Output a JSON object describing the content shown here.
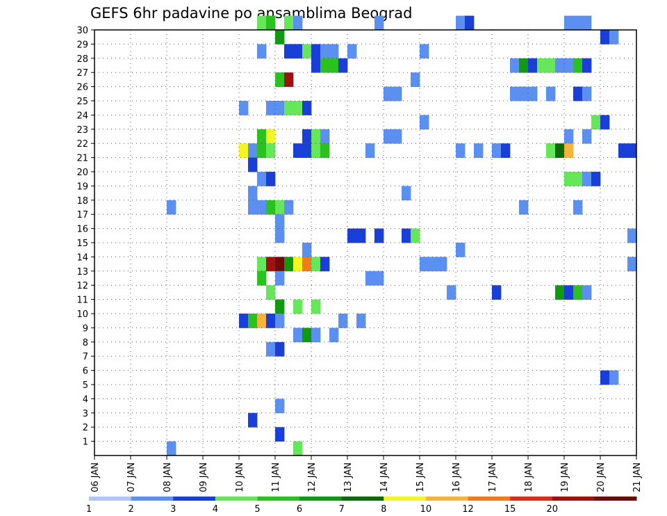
{
  "chart_data": {
    "type": "heatmap",
    "title": "GEFS 6hr padavine po ansamblima Beograd",
    "xlabel": "",
    "ylabel": "",
    "x_ticks": [
      "06 JAN",
      "07 JAN",
      "08 JAN",
      "09 JAN",
      "10 JAN",
      "11 JAN",
      "12 JAN",
      "13 JAN",
      "14 JAN",
      "15 JAN",
      "16 JAN",
      "17 JAN",
      "18 JAN",
      "19 JAN",
      "20 JAN",
      "21 JAN"
    ],
    "y_ticks": [
      "1",
      "2",
      "3",
      "4",
      "5",
      "6",
      "7",
      "8",
      "9",
      "10",
      "11",
      "12",
      "13",
      "14",
      "15",
      "16",
      "17",
      "18",
      "19",
      "20",
      "21",
      "22",
      "23",
      "24",
      "25",
      "26",
      "27",
      "28",
      "29",
      "30"
    ],
    "xlim": [
      0,
      60
    ],
    "ylim": [
      0,
      30
    ],
    "grid": true,
    "levels": [
      "1",
      "2",
      "3",
      "4",
      "5",
      "6",
      "7",
      "8",
      "10",
      "12",
      "15",
      "20"
    ],
    "level_colors": [
      "#b3c7f7",
      "#5b8ff0",
      "#1a3fd9",
      "#66e75a",
      "#29c21f",
      "#0f9a10",
      "#0a6b0a",
      "#f5f522",
      "#f8b43a",
      "#f27a1c",
      "#dc2e16",
      "#a0120f",
      "#6e0a08"
    ],
    "cells": [
      {
        "ens": 30,
        "t": "10 JAN 12Z",
        "level": 3
      },
      {
        "ens": 30,
        "t": "10 JAN 18Z",
        "level": 4
      },
      {
        "ens": 30,
        "t": "11 JAN 06Z",
        "level": 3
      },
      {
        "ens": 30,
        "t": "11 JAN 12Z",
        "level": 1
      },
      {
        "ens": 30,
        "t": "13 JAN 18Z",
        "level": 1
      },
      {
        "ens": 30,
        "t": "16 JAN 00Z",
        "level": 1
      },
      {
        "ens": 30,
        "t": "16 JAN 06Z",
        "level": 2
      },
      {
        "ens": 30,
        "t": "19 JAN 00Z",
        "level": 1
      },
      {
        "ens": 30,
        "t": "19 JAN 06Z",
        "level": 1
      },
      {
        "ens": 30,
        "t": "19 JAN 12Z",
        "level": 1
      },
      {
        "ens": 29,
        "t": "11 JAN 00Z",
        "level": 5
      },
      {
        "ens": 29,
        "t": "20 JAN 00Z",
        "level": 2
      },
      {
        "ens": 29,
        "t": "20 JAN 06Z",
        "level": 1
      },
      {
        "ens": 28,
        "t": "10 JAN 12Z",
        "level": 1
      },
      {
        "ens": 28,
        "t": "11 JAN 06Z",
        "level": 2
      },
      {
        "ens": 28,
        "t": "11 JAN 12Z",
        "level": 2
      },
      {
        "ens": 28,
        "t": "11 JAN 18Z",
        "level": 3
      },
      {
        "ens": 28,
        "t": "12 JAN 00Z",
        "level": 2
      },
      {
        "ens": 28,
        "t": "12 JAN 06Z",
        "level": 1
      },
      {
        "ens": 28,
        "t": "12 JAN 12Z",
        "level": 1
      },
      {
        "ens": 28,
        "t": "13 JAN 00Z",
        "level": 1
      },
      {
        "ens": 28,
        "t": "15 JAN 00Z",
        "level": 1
      },
      {
        "ens": 27,
        "t": "12 JAN 00Z",
        "level": 2
      },
      {
        "ens": 27,
        "t": "12 JAN 06Z",
        "level": 4
      },
      {
        "ens": 27,
        "t": "12 JAN 12Z",
        "level": 4
      },
      {
        "ens": 27,
        "t": "12 JAN 18Z",
        "level": 2
      },
      {
        "ens": 27,
        "t": "17 JAN 12Z",
        "level": 1
      },
      {
        "ens": 27,
        "t": "17 JAN 18Z",
        "level": 5
      },
      {
        "ens": 27,
        "t": "18 JAN 00Z",
        "level": 2
      },
      {
        "ens": 27,
        "t": "18 JAN 06Z",
        "level": 3
      },
      {
        "ens": 27,
        "t": "18 JAN 12Z",
        "level": 3
      },
      {
        "ens": 27,
        "t": "18 JAN 18Z",
        "level": 1
      },
      {
        "ens": 27,
        "t": "19 JAN 00Z",
        "level": 1
      },
      {
        "ens": 27,
        "t": "19 JAN 06Z",
        "level": 4
      },
      {
        "ens": 27,
        "t": "19 JAN 12Z",
        "level": 2
      },
      {
        "ens": 26,
        "t": "11 JAN 00Z",
        "level": 4
      },
      {
        "ens": 26,
        "t": "11 JAN 06Z",
        "level": 11
      },
      {
        "ens": 26,
        "t": "14 JAN 18Z",
        "level": 1
      },
      {
        "ens": 25,
        "t": "14 JAN 00Z",
        "level": 1
      },
      {
        "ens": 25,
        "t": "14 JAN 06Z",
        "level": 1
      },
      {
        "ens": 25,
        "t": "17 JAN 12Z",
        "level": 1
      },
      {
        "ens": 25,
        "t": "17 JAN 18Z",
        "level": 1
      },
      {
        "ens": 25,
        "t": "18 JAN 00Z",
        "level": 1
      },
      {
        "ens": 25,
        "t": "18 JAN 12Z",
        "level": 1
      },
      {
        "ens": 25,
        "t": "19 JAN 06Z",
        "level": 2
      },
      {
        "ens": 25,
        "t": "19 JAN 12Z",
        "level": 1
      },
      {
        "ens": 24,
        "t": "10 JAN 00Z",
        "level": 1
      },
      {
        "ens": 24,
        "t": "10 JAN 18Z",
        "level": 1
      },
      {
        "ens": 24,
        "t": "11 JAN 00Z",
        "level": 1
      },
      {
        "ens": 24,
        "t": "11 JAN 06Z",
        "level": 3
      },
      {
        "ens": 24,
        "t": "11 JAN 12Z",
        "level": 3
      },
      {
        "ens": 24,
        "t": "11 JAN 18Z",
        "level": 2
      },
      {
        "ens": 23,
        "t": "15 JAN 00Z",
        "level": 1
      },
      {
        "ens": 23,
        "t": "19 JAN 18Z",
        "level": 3
      },
      {
        "ens": 23,
        "t": "20 JAN 00Z",
        "level": 2
      },
      {
        "ens": 22,
        "t": "10 JAN 12Z",
        "level": 4
      },
      {
        "ens": 22,
        "t": "10 JAN 18Z",
        "level": 7
      },
      {
        "ens": 22,
        "t": "11 JAN 18Z",
        "level": 2
      },
      {
        "ens": 22,
        "t": "12 JAN 00Z",
        "level": 3
      },
      {
        "ens": 22,
        "t": "12 JAN 06Z",
        "level": 1
      },
      {
        "ens": 22,
        "t": "14 JAN 00Z",
        "level": 1
      },
      {
        "ens": 22,
        "t": "14 JAN 06Z",
        "level": 1
      },
      {
        "ens": 22,
        "t": "19 JAN 00Z",
        "level": 1
      },
      {
        "ens": 22,
        "t": "19 JAN 12Z",
        "level": 1
      },
      {
        "ens": 21,
        "t": "10 JAN 00Z",
        "level": 7
      },
      {
        "ens": 21,
        "t": "10 JAN 06Z",
        "level": 1
      },
      {
        "ens": 21,
        "t": "10 JAN 12Z",
        "level": 4
      },
      {
        "ens": 21,
        "t": "10 JAN 18Z",
        "level": 3
      },
      {
        "ens": 21,
        "t": "11 JAN 18Z",
        "level": 2
      },
      {
        "ens": 21,
        "t": "11 JAN 12Z",
        "level": 2
      },
      {
        "ens": 21,
        "t": "12 JAN 00Z",
        "level": 3
      },
      {
        "ens": 21,
        "t": "12 JAN 06Z",
        "level": 4
      },
      {
        "ens": 21,
        "t": "13 JAN 12Z",
        "level": 1
      },
      {
        "ens": 21,
        "t": "16 JAN 00Z",
        "level": 1
      },
      {
        "ens": 21,
        "t": "16 JAN 12Z",
        "level": 1
      },
      {
        "ens": 21,
        "t": "17 JAN 00Z",
        "level": 1
      },
      {
        "ens": 21,
        "t": "17 JAN 06Z",
        "level": 2
      },
      {
        "ens": 21,
        "t": "18 JAN 12Z",
        "level": 3
      },
      {
        "ens": 21,
        "t": "18 JAN 18Z",
        "level": 6
      },
      {
        "ens": 21,
        "t": "19 JAN 00Z",
        "level": 8
      },
      {
        "ens": 21,
        "t": "20 JAN 12Z",
        "level": 2
      },
      {
        "ens": 21,
        "t": "20 JAN 18Z",
        "level": 2
      },
      {
        "ens": 20,
        "t": "10 JAN 06Z",
        "level": 2
      },
      {
        "ens": 19,
        "t": "10 JAN 12Z",
        "level": 1
      },
      {
        "ens": 19,
        "t": "10 JAN 18Z",
        "level": 2
      },
      {
        "ens": 19,
        "t": "19 JAN 00Z",
        "level": 3
      },
      {
        "ens": 19,
        "t": "19 JAN 06Z",
        "level": 3
      },
      {
        "ens": 19,
        "t": "19 JAN 12Z",
        "level": 1
      },
      {
        "ens": 19,
        "t": "19 JAN 18Z",
        "level": 2
      },
      {
        "ens": 18,
        "t": "10 JAN 06Z",
        "level": 1
      },
      {
        "ens": 18,
        "t": "14 JAN 12Z",
        "level": 1
      },
      {
        "ens": 17,
        "t": "08 JAN 00Z",
        "level": 1
      },
      {
        "ens": 17,
        "t": "10 JAN 06Z",
        "level": 1
      },
      {
        "ens": 17,
        "t": "10 JAN 12Z",
        "level": 1
      },
      {
        "ens": 17,
        "t": "10 JAN 18Z",
        "level": 4
      },
      {
        "ens": 17,
        "t": "11 JAN 00Z",
        "level": 3
      },
      {
        "ens": 17,
        "t": "11 JAN 06Z",
        "level": 1
      },
      {
        "ens": 17,
        "t": "17 JAN 18Z",
        "level": 1
      },
      {
        "ens": 17,
        "t": "19 JAN 06Z",
        "level": 1
      },
      {
        "ens": 16,
        "t": "11 JAN 00Z",
        "level": 1
      },
      {
        "ens": 15,
        "t": "11 JAN 00Z",
        "level": 1
      },
      {
        "ens": 15,
        "t": "13 JAN 00Z",
        "level": 2
      },
      {
        "ens": 15,
        "t": "13 JAN 06Z",
        "level": 2
      },
      {
        "ens": 15,
        "t": "13 JAN 18Z",
        "level": 2
      },
      {
        "ens": 15,
        "t": "14 JAN 12Z",
        "level": 2
      },
      {
        "ens": 15,
        "t": "14 JAN 18Z",
        "level": 3
      },
      {
        "ens": 15,
        "t": "20 JAN 18Z",
        "level": 1
      },
      {
        "ens": 14,
        "t": "11 JAN 18Z",
        "level": 1
      },
      {
        "ens": 14,
        "t": "16 JAN 00Z",
        "level": 1
      },
      {
        "ens": 13,
        "t": "10 JAN 12Z",
        "level": 3
      },
      {
        "ens": 13,
        "t": "10 JAN 18Z",
        "level": 11
      },
      {
        "ens": 13,
        "t": "11 JAN 00Z",
        "level": 12
      },
      {
        "ens": 13,
        "t": "11 JAN 06Z",
        "level": 5
      },
      {
        "ens": 13,
        "t": "11 JAN 12Z",
        "level": 7
      },
      {
        "ens": 13,
        "t": "11 JAN 18Z",
        "level": 9
      },
      {
        "ens": 13,
        "t": "12 JAN 00Z",
        "level": 3
      },
      {
        "ens": 13,
        "t": "12 JAN 06Z",
        "level": 2
      },
      {
        "ens": 13,
        "t": "15 JAN 00Z",
        "level": 1
      },
      {
        "ens": 13,
        "t": "15 JAN 06Z",
        "level": 1
      },
      {
        "ens": 13,
        "t": "15 JAN 12Z",
        "level": 1
      },
      {
        "ens": 13,
        "t": "20 JAN 18Z",
        "level": 1
      },
      {
        "ens": 12,
        "t": "10 JAN 12Z",
        "level": 4
      },
      {
        "ens": 12,
        "t": "11 JAN 00Z",
        "level": 1
      },
      {
        "ens": 12,
        "t": "13 JAN 12Z",
        "level": 1
      },
      {
        "ens": 12,
        "t": "13 JAN 18Z",
        "level": 1
      },
      {
        "ens": 11,
        "t": "10 JAN 18Z",
        "level": 3
      },
      {
        "ens": 11,
        "t": "15 JAN 18Z",
        "level": 1
      },
      {
        "ens": 11,
        "t": "17 JAN 00Z",
        "level": 2
      },
      {
        "ens": 11,
        "t": "18 JAN 18Z",
        "level": 5
      },
      {
        "ens": 11,
        "t": "19 JAN 00Z",
        "level": 2
      },
      {
        "ens": 11,
        "t": "19 JAN 06Z",
        "level": 4
      },
      {
        "ens": 11,
        "t": "19 JAN 12Z",
        "level": 1
      },
      {
        "ens": 10,
        "t": "11 JAN 00Z",
        "level": 5
      },
      {
        "ens": 10,
        "t": "11 JAN 12Z",
        "level": 3
      },
      {
        "ens": 10,
        "t": "12 JAN 00Z",
        "level": 3
      },
      {
        "ens": 9,
        "t": "10 JAN 00Z",
        "level": 2
      },
      {
        "ens": 9,
        "t": "10 JAN 06Z",
        "level": 4
      },
      {
        "ens": 9,
        "t": "10 JAN 12Z",
        "level": 8
      },
      {
        "ens": 9,
        "t": "10 JAN 18Z",
        "level": 2
      },
      {
        "ens": 9,
        "t": "11 JAN 00Z",
        "level": 1
      },
      {
        "ens": 9,
        "t": "12 JAN 18Z",
        "level": 1
      },
      {
        "ens": 9,
        "t": "13 JAN 06Z",
        "level": 1
      },
      {
        "ens": 8,
        "t": "11 JAN 12Z",
        "level": 1
      },
      {
        "ens": 8,
        "t": "11 JAN 18Z",
        "level": 5
      },
      {
        "ens": 8,
        "t": "12 JAN 00Z",
        "level": 1
      },
      {
        "ens": 8,
        "t": "12 JAN 12Z",
        "level": 1
      },
      {
        "ens": 7,
        "t": "10 JAN 18Z",
        "level": 1
      },
      {
        "ens": 7,
        "t": "11 JAN 00Z",
        "level": 2
      },
      {
        "ens": 5,
        "t": "20 JAN 00Z",
        "level": 2
      },
      {
        "ens": 5,
        "t": "20 JAN 06Z",
        "level": 1
      },
      {
        "ens": 3,
        "t": "11 JAN 00Z",
        "level": 1
      },
      {
        "ens": 2,
        "t": "10 JAN 06Z",
        "level": 2
      },
      {
        "ens": 1,
        "t": "11 JAN 00Z",
        "level": 2
      },
      {
        "ens": 0,
        "t": "08 JAN 00Z",
        "level": 1
      },
      {
        "ens": 0,
        "t": "11 JAN 12Z",
        "level": 3
      }
    ]
  }
}
